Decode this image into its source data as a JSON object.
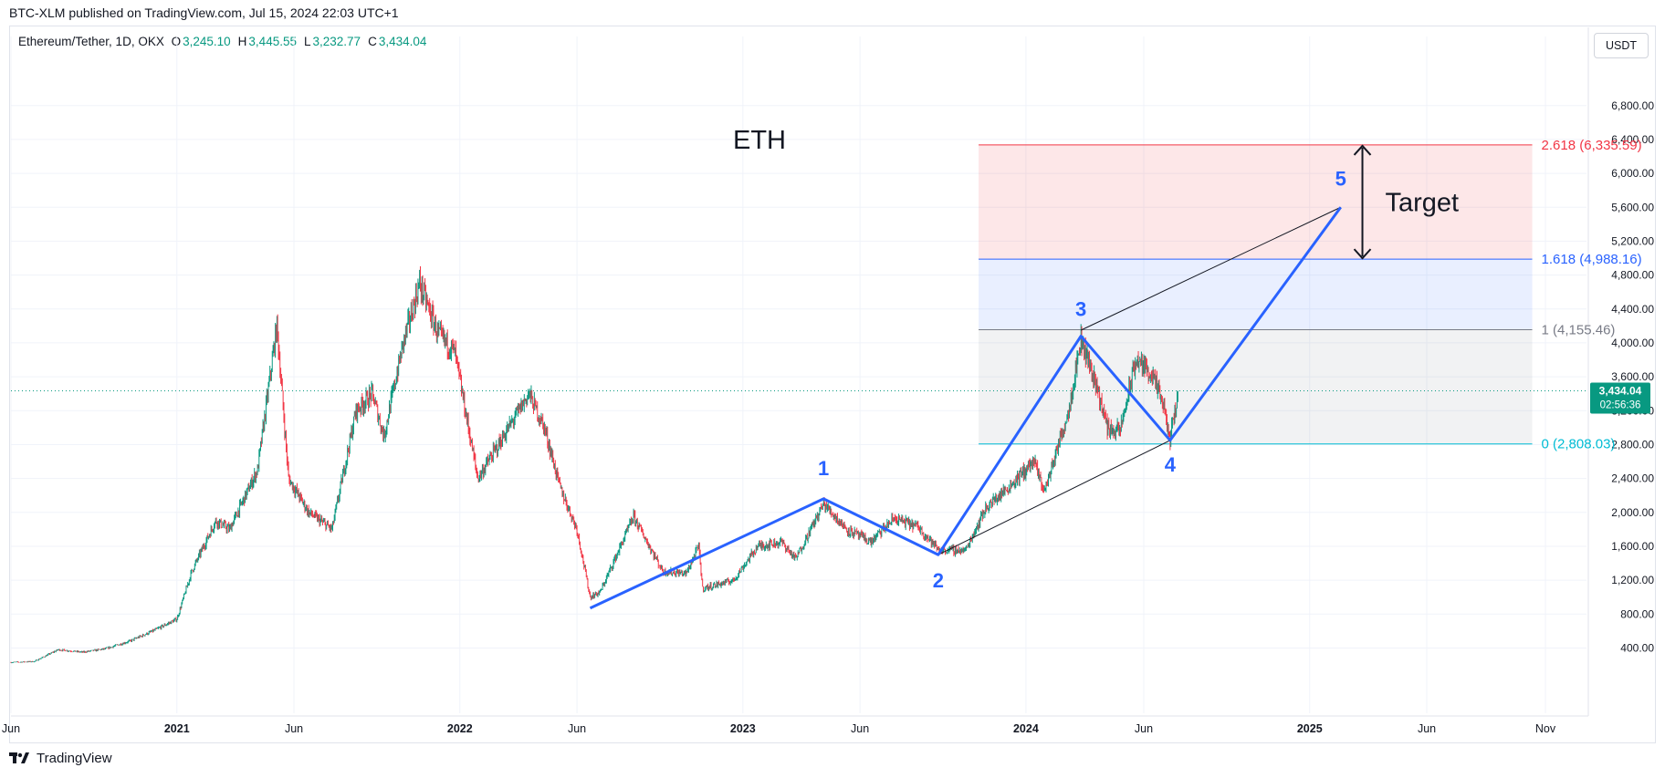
{
  "header": {
    "published": "BTC-XLM published on TradingView.com, Jul 15, 2024 22:03 UTC+1"
  },
  "symbol": {
    "name": "Ethereum/Tether, 1D, OKX",
    "o_label": "O",
    "o": "3,245.10",
    "h_label": "H",
    "h": "3,445.55",
    "l_label": "L",
    "l": "3,232.77",
    "c_label": "C",
    "c": "3,434.04"
  },
  "currency": "USDT",
  "footer": {
    "brand": "TradingView"
  },
  "colors": {
    "up": "#089981",
    "down": "#f23645",
    "wave": "#2962ff",
    "fib_2618": "#f23645",
    "fib_1618": "#2962ff",
    "fib_1": "#787b86",
    "fib_0": "#00bcd4"
  },
  "chart_data": {
    "type": "candlestick",
    "title": "ETH",
    "price_axis": {
      "ticks": [
        400,
        800,
        1200,
        1600,
        2000,
        2400,
        2800,
        3200,
        3600,
        4000,
        4400,
        4800,
        5200,
        5600,
        6000,
        6400,
        6800
      ],
      "tick_labels": [
        "400.00",
        "800.00",
        "1,200.00",
        "1,600.00",
        "2,000.00",
        "2,400.00",
        "2,800.00",
        "3,200.00",
        "3,600.00",
        "4,000.00",
        "4,400.00",
        "4,800.00",
        "5,200.00",
        "5,600.00",
        "6,000.00",
        "6,400.00",
        "6,800.00"
      ],
      "ylim": [
        -370,
        7400
      ]
    },
    "time_axis": {
      "ticks": [
        {
          "date": "2020-06-01",
          "label": "Jun",
          "bold": false
        },
        {
          "date": "2021-01-01",
          "label": "2021",
          "bold": true
        },
        {
          "date": "2021-06-01",
          "label": "Jun",
          "bold": false
        },
        {
          "date": "2022-01-01",
          "label": "2022",
          "bold": true
        },
        {
          "date": "2022-06-01",
          "label": "Jun",
          "bold": false
        },
        {
          "date": "2023-01-01",
          "label": "2023",
          "bold": true
        },
        {
          "date": "2023-06-01",
          "label": "Jun",
          "bold": false
        },
        {
          "date": "2024-01-01",
          "label": "2024",
          "bold": true
        },
        {
          "date": "2024-06-01",
          "label": "Jun",
          "bold": false
        },
        {
          "date": "2025-01-01",
          "label": "2025",
          "bold": true
        },
        {
          "date": "2025-06-01",
          "label": "Jun",
          "bold": false
        },
        {
          "date": "2025-11-01",
          "label": "Nov",
          "bold": false
        }
      ],
      "xlim": [
        "2020-06-01",
        "2025-12-24"
      ]
    },
    "last_price": {
      "value": 3434.04,
      "label": "3,434.04",
      "countdown": "02:56:36"
    },
    "price_path": [
      [
        "2020-06-01",
        230
      ],
      [
        "2020-07-01",
        240
      ],
      [
        "2020-08-01",
        380
      ],
      [
        "2020-09-01",
        350
      ],
      [
        "2020-10-01",
        390
      ],
      [
        "2020-11-01",
        480
      ],
      [
        "2020-12-01",
        600
      ],
      [
        "2021-01-01",
        740
      ],
      [
        "2021-01-20",
        1300
      ],
      [
        "2021-02-20",
        1900
      ],
      [
        "2021-03-10",
        1800
      ],
      [
        "2021-04-15",
        2500
      ],
      [
        "2021-05-10",
        4200
      ],
      [
        "2021-05-25",
        2400
      ],
      [
        "2021-06-20",
        2000
      ],
      [
        "2021-07-20",
        1800
      ],
      [
        "2021-08-20",
        3200
      ],
      [
        "2021-09-10",
        3400
      ],
      [
        "2021-09-25",
        2900
      ],
      [
        "2021-10-20",
        4000
      ],
      [
        "2021-11-10",
        4700
      ],
      [
        "2021-12-04",
        4100
      ],
      [
        "2021-12-25",
        3900
      ],
      [
        "2022-01-24",
        2400
      ],
      [
        "2022-02-20",
        2800
      ],
      [
        "2022-03-31",
        3400
      ],
      [
        "2022-04-20",
        3000
      ],
      [
        "2022-05-10",
        2300
      ],
      [
        "2022-06-01",
        1800
      ],
      [
        "2022-06-18",
        1000
      ],
      [
        "2022-07-01",
        1060
      ],
      [
        "2022-08-13",
        1950
      ],
      [
        "2022-09-20",
        1300
      ],
      [
        "2022-10-20",
        1280
      ],
      [
        "2022-11-05",
        1600
      ],
      [
        "2022-11-10",
        1100
      ],
      [
        "2022-12-20",
        1200
      ],
      [
        "2023-01-20",
        1600
      ],
      [
        "2023-02-20",
        1650
      ],
      [
        "2023-03-10",
        1450
      ],
      [
        "2023-04-15",
        2100
      ],
      [
        "2023-05-15",
        1800
      ],
      [
        "2023-06-15",
        1650
      ],
      [
        "2023-07-15",
        1930
      ],
      [
        "2023-08-15",
        1830
      ],
      [
        "2023-09-10",
        1560
      ],
      [
        "2023-10-15",
        1550
      ],
      [
        "2023-11-10",
        2050
      ],
      [
        "2023-12-10",
        2300
      ],
      [
        "2024-01-11",
        2600
      ],
      [
        "2024-01-25",
        2250
      ],
      [
        "2024-02-25",
        3200
      ],
      [
        "2024-03-12",
        4050
      ],
      [
        "2024-04-01",
        3500
      ],
      [
        "2024-04-15",
        3000
      ],
      [
        "2024-05-01",
        2950
      ],
      [
        "2024-05-22",
        3800
      ],
      [
        "2024-06-10",
        3650
      ],
      [
        "2024-06-25",
        3300
      ],
      [
        "2024-07-05",
        2850
      ],
      [
        "2024-07-15",
        3434
      ]
    ],
    "fib_levels": [
      {
        "ratio": "2.618",
        "value": 6335.59,
        "label": "2.618 (6,335.59)"
      },
      {
        "ratio": "1.618",
        "value": 4988.16,
        "label": "1.618 (4,988.16)"
      },
      {
        "ratio": "1",
        "value": 4155.46,
        "label": "1 (4,155.46)"
      },
      {
        "ratio": "0",
        "value": 2808.03,
        "label": "0 (2,808.03)"
      }
    ],
    "fib_range": {
      "start": "2023-11-01",
      "end": "2025-10-15"
    },
    "wave": [
      {
        "date": "2022-06-18",
        "price": 870,
        "label": ""
      },
      {
        "date": "2023-04-15",
        "price": 2160,
        "label": "1"
      },
      {
        "date": "2023-09-10",
        "price": 1500,
        "label": "2"
      },
      {
        "date": "2024-03-12",
        "price": 4080,
        "label": "3"
      },
      {
        "date": "2024-07-05",
        "price": 2850,
        "label": "4"
      },
      {
        "date": "2025-02-10",
        "price": 5600,
        "label": "5"
      }
    ],
    "channel_lines": [
      {
        "from": {
          "date": "2023-09-10",
          "price": 1500
        },
        "to": {
          "date": "2024-07-05",
          "price": 2850
        }
      },
      {
        "from": {
          "date": "2024-03-12",
          "price": 4150
        },
        "to": {
          "date": "2025-02-10",
          "price": 5600
        }
      }
    ],
    "target": {
      "label": "Target",
      "date": "2025-03-10",
      "from": 6335.59,
      "to": 4988.16
    }
  }
}
